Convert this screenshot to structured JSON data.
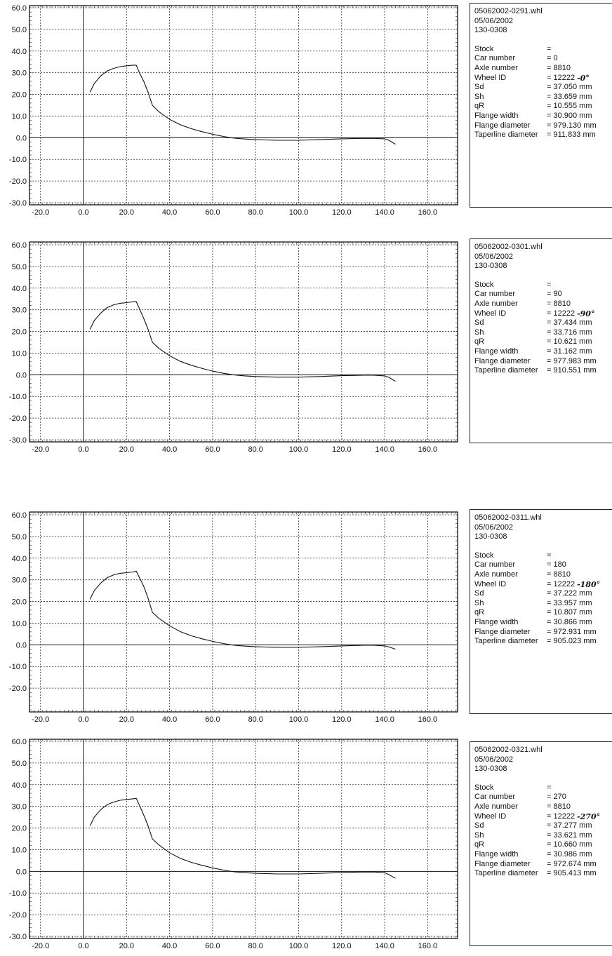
{
  "panels": [
    {
      "info": {
        "file": "05062002-0291.whl",
        "date": "05/06/2002",
        "code": "130-0308",
        "rows": [
          {
            "label": "Stock",
            "value": "="
          },
          {
            "label": "Car number",
            "value": "= 0"
          },
          {
            "label": "Axle number",
            "value": "= 8810"
          },
          {
            "label": "Wheel ID",
            "value": "= 12222",
            "note": "-0°"
          },
          {
            "label": "Sd",
            "value": "= 37.050 mm"
          },
          {
            "label": "Sh",
            "value": "= 33.659 mm"
          },
          {
            "label": "qR",
            "value": "= 10.555 mm"
          },
          {
            "label": "Flange width",
            "value": "= 30.900 mm"
          },
          {
            "label": "Flange diameter",
            "value": "= 979.130 mm"
          },
          {
            "label": "Taperline diameter",
            "value": "= 911.833 mm"
          }
        ]
      }
    },
    {
      "info": {
        "file": "05062002-0301.whl",
        "date": "05/06/2002",
        "code": "130-0308",
        "rows": [
          {
            "label": "Stock",
            "value": "="
          },
          {
            "label": "Car number",
            "value": "= 90"
          },
          {
            "label": "Axle number",
            "value": "= 8810"
          },
          {
            "label": "Wheel ID",
            "value": "= 12222",
            "note": "-90°"
          },
          {
            "label": "Sd",
            "value": "= 37.434 mm"
          },
          {
            "label": "Sh",
            "value": "= 33.716 mm"
          },
          {
            "label": "qR",
            "value": "= 10.621 mm"
          },
          {
            "label": "Flange width",
            "value": "= 31.162 mm"
          },
          {
            "label": "Flange diameter",
            "value": "= 977.983 mm"
          },
          {
            "label": "Taperline diameter",
            "value": "= 910.551 mm"
          }
        ]
      }
    },
    {
      "info": {
        "file": "05062002-0311.whl",
        "date": "05/06/2002",
        "code": "130-0308",
        "rows": [
          {
            "label": "Stock",
            "value": "="
          },
          {
            "label": "Car number",
            "value": "= 180"
          },
          {
            "label": "Axle number",
            "value": "= 8810"
          },
          {
            "label": "Wheel ID",
            "value": "= 12222",
            "note": "-180°"
          },
          {
            "label": "Sd",
            "value": "= 37.222 mm"
          },
          {
            "label": "Sh",
            "value": "= 33.957 mm"
          },
          {
            "label": "qR",
            "value": "= 10.807 mm"
          },
          {
            "label": "Flange width",
            "value": "= 30.866 mm"
          },
          {
            "label": "Flange diameter",
            "value": "= 972.931 mm"
          },
          {
            "label": "Taperline diameter",
            "value": "= 905.023 mm"
          }
        ]
      }
    },
    {
      "info": {
        "file": "05062002-0321.whl",
        "date": "05/06/2002",
        "code": "130-0308",
        "rows": [
          {
            "label": "Stock",
            "value": "="
          },
          {
            "label": "Car number",
            "value": "= 270"
          },
          {
            "label": "Axle number",
            "value": "= 8810"
          },
          {
            "label": "Wheel ID",
            "value": "= 12222",
            "note": "-270°"
          },
          {
            "label": "Sd",
            "value": "= 37.277 mm"
          },
          {
            "label": "Sh",
            "value": "= 33.621 mm"
          },
          {
            "label": "qR",
            "value": "= 10.660 mm"
          },
          {
            "label": "Flange width",
            "value": "= 30.986 mm"
          },
          {
            "label": "Flange diameter",
            "value": "= 972.674 mm"
          },
          {
            "label": "Taperline diameter",
            "value": "= 905.413 mm"
          }
        ]
      }
    }
  ],
  "chart_data": [
    {
      "type": "line",
      "title": "",
      "xlabel": "",
      "ylabel": "",
      "xlim": [
        -25,
        175
      ],
      "ylim": [
        -30,
        60
      ],
      "xticks": [
        "-20.0",
        "0.0",
        "20.0",
        "40.0",
        "60.0",
        "80.0",
        "100.0",
        "120.0",
        "140.0",
        "160.0"
      ],
      "yticks": [
        "60.0",
        "50.0",
        "40.0",
        "30.0",
        "20.0",
        "10.0",
        "0.0",
        "-10.0",
        "-20.0",
        "-30.0"
      ],
      "grid": true,
      "series": [
        {
          "x": [
            3,
            5,
            8,
            11,
            14,
            17,
            20,
            23,
            24.5,
            26,
            28,
            30,
            32,
            35,
            40,
            45,
            50,
            55,
            60,
            65,
            70,
            75,
            80,
            90,
            100,
            110,
            120,
            130,
            135,
            140,
            142,
            145
          ],
          "y": [
            21,
            25,
            28.5,
            30.8,
            32,
            32.8,
            33.2,
            33.5,
            33.5,
            30,
            26,
            21,
            15,
            12,
            8.5,
            6,
            4.2,
            2.8,
            1.6,
            0.6,
            -0.2,
            -0.6,
            -0.9,
            -1.2,
            -1.2,
            -0.9,
            -0.5,
            -0.3,
            -0.3,
            -0.5,
            -1.2,
            -3
          ]
        }
      ]
    },
    {
      "type": "line",
      "title": "",
      "xlabel": "",
      "ylabel": "",
      "xlim": [
        -25,
        175
      ],
      "ylim": [
        -30,
        60
      ],
      "xticks": [
        "-20.0",
        "0.0",
        "20.0",
        "40.0",
        "60.0",
        "80.0",
        "100.0",
        "120.0",
        "140.0",
        "160.0"
      ],
      "yticks": [
        "60.0",
        "50.0",
        "40.0",
        "30.0",
        "20.0",
        "10.0",
        "0.0",
        "-10.0",
        "-20.0",
        "-30.0"
      ],
      "grid": true,
      "series": [
        {
          "x": [
            3,
            5,
            8,
            11,
            14,
            17,
            20,
            23,
            24.5,
            26,
            28,
            30,
            32,
            35,
            40,
            45,
            50,
            55,
            60,
            65,
            70,
            75,
            80,
            90,
            100,
            110,
            120,
            130,
            135,
            140,
            142,
            145
          ],
          "y": [
            21,
            25,
            28.5,
            31,
            32.3,
            33,
            33.3,
            33.7,
            33.8,
            30.5,
            26,
            21,
            15,
            12.2,
            8.8,
            6.2,
            4.4,
            3,
            1.7,
            0.7,
            -0.1,
            -0.5,
            -0.8,
            -1.1,
            -1.1,
            -0.8,
            -0.4,
            -0.2,
            -0.2,
            -0.5,
            -1.2,
            -3
          ]
        }
      ]
    },
    {
      "type": "line",
      "title": "",
      "xlabel": "",
      "ylabel": "",
      "xlim": [
        -25,
        175
      ],
      "ylim": [
        -30,
        60
      ],
      "xticks": [
        "-20.0",
        "0.0",
        "20.0",
        "40.0",
        "60.0",
        "80.0",
        "100.0",
        "120.0",
        "140.0",
        "160.0"
      ],
      "yticks": [
        "60.0",
        "50.0",
        "40.0",
        "30.0",
        "20.0",
        "10.0",
        "0.0",
        "-10.0",
        "-20.0"
      ],
      "grid": true,
      "series": [
        {
          "x": [
            3,
            5,
            8,
            11,
            14,
            17,
            20,
            23,
            24.5,
            26,
            28,
            30,
            32,
            35,
            40,
            45,
            50,
            55,
            60,
            65,
            70,
            75,
            80,
            90,
            100,
            110,
            120,
            130,
            135,
            140,
            142,
            145
          ],
          "y": [
            21,
            25,
            28.5,
            31,
            32.3,
            33,
            33.3,
            33.6,
            34,
            31,
            27,
            21.5,
            15,
            12.2,
            8.8,
            6.1,
            4.2,
            2.8,
            1.6,
            0.6,
            -0.2,
            -0.6,
            -0.9,
            -1.2,
            -1.2,
            -0.9,
            -0.5,
            -0.2,
            -0.2,
            -0.5,
            -1,
            -2
          ]
        }
      ]
    },
    {
      "type": "line",
      "title": "",
      "xlabel": "",
      "ylabel": "",
      "xlim": [
        -25,
        175
      ],
      "ylim": [
        -30,
        60
      ],
      "xticks": [
        "-20.0",
        "0.0",
        "20.0",
        "40.0",
        "60.0",
        "80.0",
        "100.0",
        "120.0",
        "140.0",
        "160.0"
      ],
      "yticks": [
        "60.0",
        "50.0",
        "40.0",
        "30.0",
        "20.0",
        "10.0",
        "0.0",
        "-10.0",
        "-20.0",
        "-30.0"
      ],
      "grid": true,
      "series": [
        {
          "x": [
            3,
            5,
            8,
            11,
            14,
            17,
            20,
            23,
            24.5,
            26,
            28,
            30,
            32,
            35,
            40,
            45,
            50,
            55,
            60,
            65,
            70,
            75,
            80,
            90,
            100,
            110,
            120,
            130,
            135,
            140,
            142,
            145
          ],
          "y": [
            21,
            25,
            28.5,
            30.8,
            32,
            32.8,
            33.2,
            33.5,
            33.7,
            30.5,
            26,
            21,
            15,
            12.2,
            8.6,
            6,
            4.2,
            2.8,
            1.6,
            0.6,
            -0.2,
            -0.6,
            -0.9,
            -1.2,
            -1.2,
            -0.9,
            -0.5,
            -0.3,
            -0.3,
            -0.6,
            -1.5,
            -3.2
          ]
        }
      ]
    }
  ]
}
